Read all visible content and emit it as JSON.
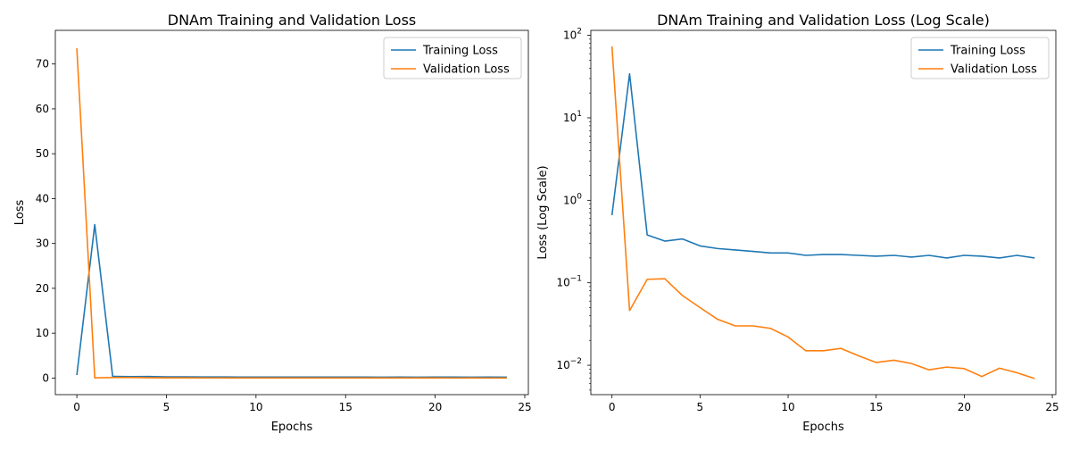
{
  "colors": {
    "training": "#1f77b4",
    "validation": "#ff7f0e"
  },
  "chart_data": [
    {
      "type": "line",
      "title": "DNAm Training and Validation Loss",
      "xlabel": "Epochs",
      "ylabel": "Loss",
      "xlim": [
        -1.2,
        25.2
      ],
      "ylim": [
        -3.7,
        77.5
      ],
      "yscale": "linear",
      "xticks": [
        0,
        5,
        10,
        15,
        20,
        25
      ],
      "xtick_labels": [
        "0",
        "5",
        "10",
        "15",
        "20",
        "25"
      ],
      "yticks": [
        0,
        10,
        20,
        30,
        40,
        50,
        60,
        70
      ],
      "ytick_labels": [
        "0",
        "10",
        "20",
        "30",
        "40",
        "50",
        "60",
        "70"
      ],
      "grid": false,
      "legend_position": "top-right",
      "x": [
        0,
        1,
        2,
        3,
        4,
        5,
        6,
        7,
        8,
        9,
        10,
        11,
        12,
        13,
        14,
        15,
        16,
        17,
        18,
        19,
        20,
        21,
        22,
        23,
        24
      ],
      "series": [
        {
          "name": "Training Loss",
          "color": "#1f77b4",
          "values": [
            0.66,
            34.2,
            0.38,
            0.32,
            0.34,
            0.28,
            0.26,
            0.25,
            0.24,
            0.23,
            0.23,
            0.215,
            0.22,
            0.22,
            0.215,
            0.21,
            0.215,
            0.205,
            0.215,
            0.2,
            0.215,
            0.21,
            0.2,
            0.215,
            0.2
          ]
        },
        {
          "name": "Validation Loss",
          "color": "#ff7f0e",
          "values": [
            73.5,
            0.046,
            0.11,
            0.112,
            0.07,
            0.05,
            0.036,
            0.03,
            0.03,
            0.028,
            0.022,
            0.015,
            0.015,
            0.016,
            0.013,
            0.0108,
            0.0115,
            0.0105,
            0.0088,
            0.0095,
            0.0091,
            0.0073,
            0.0092,
            0.0081,
            0.0069
          ]
        }
      ]
    },
    {
      "type": "line",
      "title": "DNAm Training and Validation Loss (Log Scale)",
      "xlabel": "Epochs",
      "ylabel": "Loss (Log Scale)",
      "xlim": [
        -1.2,
        25.2
      ],
      "ylim": [
        0.0044,
        115
      ],
      "yscale": "log",
      "xticks": [
        0,
        5,
        10,
        15,
        20,
        25
      ],
      "xtick_labels": [
        "0",
        "5",
        "10",
        "15",
        "20",
        "25"
      ],
      "yticks": [
        0.01,
        0.1,
        1,
        10,
        100
      ],
      "ytick_labels": [
        {
          "base": "10",
          "exp": "−2"
        },
        {
          "base": "10",
          "exp": "−1"
        },
        {
          "base": "10",
          "exp": "0"
        },
        {
          "base": "10",
          "exp": "1"
        },
        {
          "base": "10",
          "exp": "2"
        }
      ],
      "grid": false,
      "legend_position": "top-right",
      "x": [
        0,
        1,
        2,
        3,
        4,
        5,
        6,
        7,
        8,
        9,
        10,
        11,
        12,
        13,
        14,
        15,
        16,
        17,
        18,
        19,
        20,
        21,
        22,
        23,
        24
      ],
      "series": [
        {
          "name": "Training Loss",
          "color": "#1f77b4",
          "values": [
            0.66,
            34.2,
            0.38,
            0.32,
            0.34,
            0.28,
            0.26,
            0.25,
            0.24,
            0.23,
            0.23,
            0.215,
            0.22,
            0.22,
            0.215,
            0.21,
            0.215,
            0.205,
            0.215,
            0.2,
            0.215,
            0.21,
            0.2,
            0.215,
            0.2
          ]
        },
        {
          "name": "Validation Loss",
          "color": "#ff7f0e",
          "values": [
            73.5,
            0.046,
            0.11,
            0.112,
            0.07,
            0.05,
            0.036,
            0.03,
            0.03,
            0.028,
            0.022,
            0.015,
            0.015,
            0.016,
            0.013,
            0.0108,
            0.0115,
            0.0105,
            0.0088,
            0.0095,
            0.0091,
            0.0073,
            0.0092,
            0.0081,
            0.0069
          ]
        }
      ]
    }
  ]
}
